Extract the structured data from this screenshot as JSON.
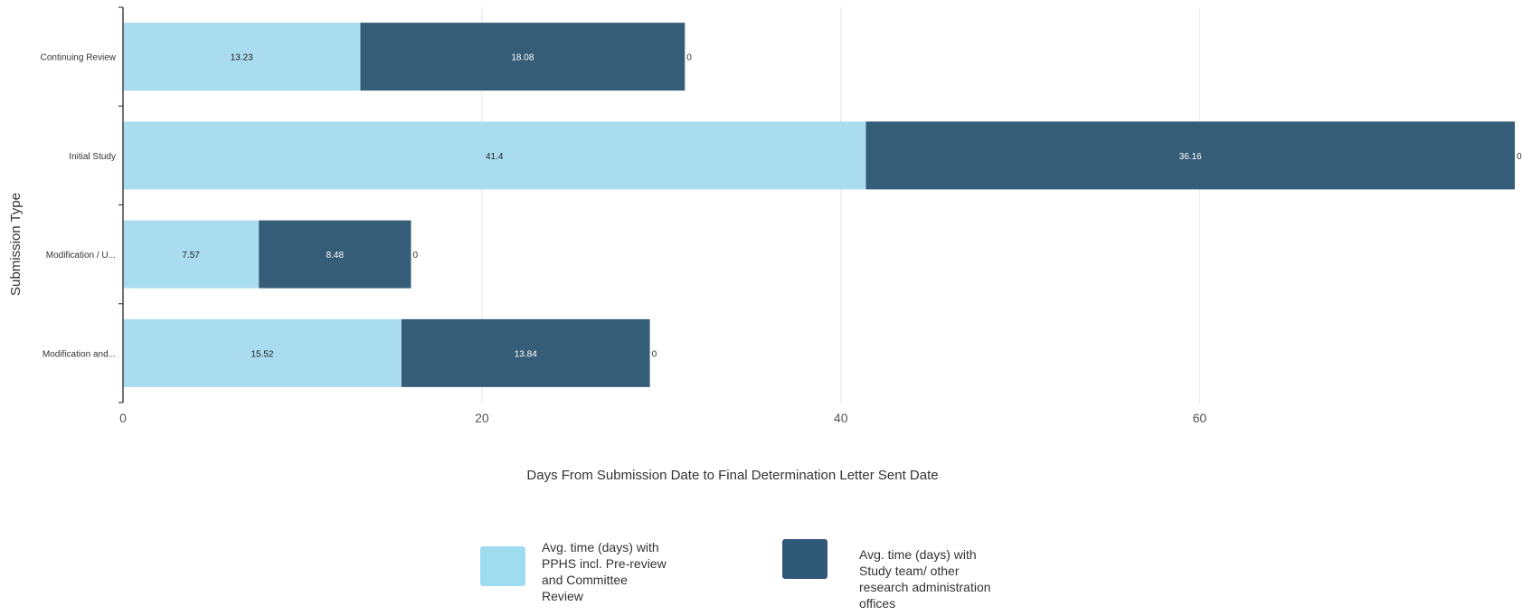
{
  "chart_data": {
    "type": "bar",
    "orientation": "horizontal",
    "stacked": true,
    "categories": [
      "Continuing Review",
      "Initial Study",
      "Modification / U...",
      "Modification and..."
    ],
    "series": [
      {
        "name": "Avg. time (days) with PPHS incl. Pre-review and Committee Review",
        "values": [
          13.23,
          41.4,
          7.57,
          15.52
        ],
        "color": "#aadcf0",
        "label_color": "#222222"
      },
      {
        "name": "Avg. time (days) with Study team/ other research administration offices",
        "values": [
          18.08,
          36.16,
          8.48,
          13.84
        ],
        "color": "#365d77",
        "label_color": "#ffffff"
      }
    ],
    "end_labels": [
      "0",
      "0",
      "0",
      "0"
    ],
    "xlabel": "Days From Submission Date to Final Determination Letter Sent Date",
    "ylabel": "Submission Type",
    "xlim": [
      0,
      77.56
    ],
    "xticks": [
      0,
      20,
      40,
      60
    ],
    "grid": "vertical",
    "legend_position": "bottom"
  },
  "legend": {
    "items": [
      {
        "lines": [
          "Avg. time (days) with",
          "PPHS incl. Pre-review",
          "and Committee",
          "Review"
        ],
        "color": "#9fdcef",
        "border": "#9fdcef"
      },
      {
        "lines": [
          "Avg. time (days) with",
          "Study team/ other",
          "research administration",
          "offices"
        ],
        "color": "#2e5a78",
        "border": "#3a4f86"
      }
    ]
  }
}
